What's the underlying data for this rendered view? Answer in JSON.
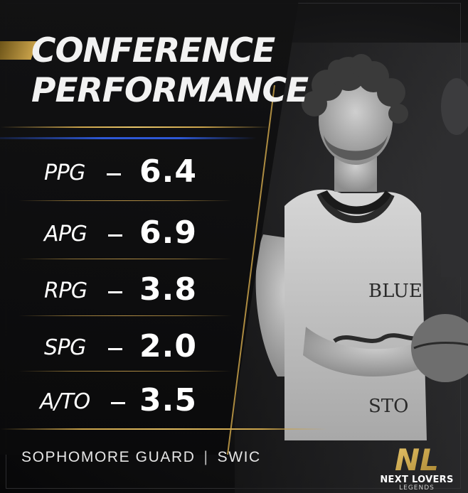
{
  "graphic": {
    "title_line1": "CONFERENCE",
    "title_line2": "PERFORMANCE",
    "stats": [
      {
        "label": "PPG",
        "value": "6.4"
      },
      {
        "label": "APG",
        "value": "6.9"
      },
      {
        "label": "RPG",
        "value": "3.8"
      },
      {
        "label": "SPG",
        "value": "2.0"
      },
      {
        "label": "A/TO",
        "value": "3.5"
      }
    ],
    "footer": {
      "position": "SOPHOMORE GUARD",
      "separator": "|",
      "school": "SWIC"
    },
    "jersey_text": {
      "line1": "BLUE",
      "line2": "STO"
    },
    "logo": {
      "monogram": "NL",
      "name": "NEXT LOVERS",
      "sub": "LEGENDS"
    },
    "colors": {
      "gold": "#c9a24a",
      "blue": "#2d58d6",
      "background": "#0b0b0c",
      "text": "#ffffff"
    }
  }
}
